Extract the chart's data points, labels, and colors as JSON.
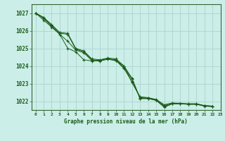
{
  "title": "Graphe pression niveau de la mer (hPa)",
  "bg_color": "#cceee8",
  "grid_color": "#aad4cc",
  "line_color": "#1a5c1a",
  "spine_color": "#336633",
  "xlim": [
    -0.5,
    23
  ],
  "ylim": [
    1021.5,
    1027.5
  ],
  "yticks": [
    1022,
    1023,
    1024,
    1025,
    1026,
    1027
  ],
  "xtick_labels": [
    "0",
    "1",
    "2",
    "3",
    "4",
    "5",
    "6",
    "7",
    "8",
    "9",
    "10",
    "11",
    "12",
    "13",
    "14",
    "15",
    "16",
    "17",
    "18",
    "19",
    "20",
    "21",
    "22",
    "23"
  ],
  "series": [
    [
      1027.0,
      1026.75,
      1026.35,
      1025.9,
      1025.85,
      1025.0,
      1024.85,
      1024.4,
      1024.35,
      1024.45,
      1024.4,
      1024.0,
      1023.3,
      1022.15,
      1022.15,
      1022.05,
      1021.65,
      1021.85,
      1021.85,
      1021.85,
      1021.85,
      1021.75,
      1021.72
    ],
    [
      1027.0,
      1026.75,
      1026.3,
      1025.85,
      1025.8,
      1024.95,
      1024.8,
      1024.35,
      1024.3,
      1024.4,
      1024.35,
      1023.9,
      1023.25,
      1022.15,
      1022.15,
      1022.05,
      1021.7,
      1021.85,
      1021.85,
      1021.82,
      1021.82,
      1021.72,
      1021.69
    ],
    [
      1027.0,
      1026.7,
      1026.25,
      1025.8,
      1025.4,
      1024.9,
      1024.75,
      1024.3,
      1024.28,
      1024.38,
      1024.3,
      1023.85,
      1023.1,
      1022.2,
      1022.18,
      1022.08,
      1021.75,
      1021.88,
      1021.86,
      1021.83,
      1021.83,
      1021.73,
      1021.7
    ],
    [
      1027.0,
      1026.6,
      1026.2,
      1025.8,
      1025.0,
      1024.8,
      1024.35,
      1024.28,
      1024.32,
      1024.4,
      1024.3,
      1024.0,
      1023.05,
      1022.25,
      1022.2,
      1022.1,
      1021.8,
      1021.9,
      1021.88,
      1021.85,
      1021.85,
      1021.75,
      1021.72
    ]
  ],
  "series_x": [
    0,
    1,
    2,
    3,
    4,
    5,
    6,
    7,
    8,
    9,
    10,
    11,
    12,
    13,
    14,
    15,
    16,
    17,
    18,
    19,
    20,
    21,
    22
  ]
}
